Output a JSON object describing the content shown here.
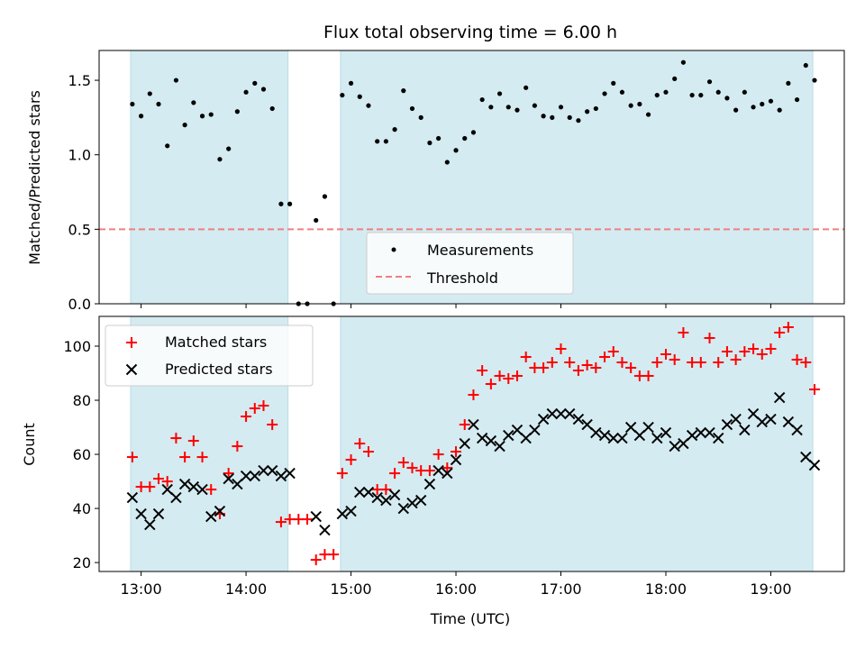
{
  "chart_data": {
    "title": "Flux total observing time = 6.00 h",
    "xlabel": "Time (UTC)",
    "x_ticks": [
      "13:00",
      "14:00",
      "15:00",
      "16:00",
      "17:00",
      "18:00",
      "19:00"
    ],
    "x_tick_hours": [
      13,
      14,
      15,
      16,
      17,
      18,
      19
    ],
    "xlim_hours": [
      12.6,
      19.7
    ],
    "shaded_intervals_hours": [
      [
        12.9,
        14.4
      ],
      [
        14.9,
        19.4
      ]
    ],
    "shade_color": "#d4ebf1",
    "panels": [
      {
        "type": "scatter",
        "ylabel": "Matched/Predicted stars",
        "ylim": [
          0,
          1.7
        ],
        "y_ticks": [
          0.0,
          0.5,
          1.0,
          1.5
        ],
        "y_tick_labels": [
          "0.0",
          "0.5",
          "1.0",
          "1.5"
        ],
        "threshold": 0.5,
        "threshold_color": "#f08080",
        "legend_position": "lower-center",
        "legend": [
          {
            "name": "Measurements",
            "marker": "dot",
            "color": "#000000"
          },
          {
            "name": "Threshold",
            "marker": "dashed-line",
            "color": "#f08080"
          }
        ],
        "series": [
          {
            "name": "Measurements",
            "color": "#000000",
            "x": [
              "12:55",
              "13:00",
              "13:05",
              "13:10",
              "13:15",
              "13:20",
              "13:25",
              "13:30",
              "13:35",
              "13:40",
              "13:45",
              "13:50",
              "13:55",
              "14:00",
              "14:05",
              "14:10",
              "14:15",
              "14:20",
              "14:25",
              "14:30",
              "14:35",
              "14:40",
              "14:45",
              "14:50",
              "14:55",
              "15:00",
              "15:05",
              "15:10",
              "15:15",
              "15:20",
              "15:25",
              "15:30",
              "15:35",
              "15:40",
              "15:45",
              "15:50",
              "15:55",
              "16:00",
              "16:05",
              "16:10",
              "16:15",
              "16:20",
              "16:25",
              "16:30",
              "16:35",
              "16:40",
              "16:45",
              "16:50",
              "16:55",
              "17:00",
              "17:05",
              "17:10",
              "17:15",
              "17:20",
              "17:25",
              "17:30",
              "17:35",
              "17:40",
              "17:45",
              "17:50",
              "17:55",
              "18:00",
              "18:05",
              "18:10",
              "18:15",
              "18:20",
              "18:25",
              "18:30",
              "18:35",
              "18:40",
              "18:45",
              "18:50",
              "18:55",
              "19:00",
              "19:05",
              "19:10",
              "19:15",
              "19:20",
              "19:25"
            ],
            "y": [
              1.34,
              1.26,
              1.41,
              1.34,
              1.06,
              1.5,
              1.2,
              1.35,
              1.26,
              1.27,
              0.97,
              1.04,
              1.29,
              1.42,
              1.48,
              1.44,
              1.31,
              0.67,
              0.67,
              0.0,
              0.0,
              0.56,
              0.72,
              0.0,
              1.4,
              1.48,
              1.39,
              1.33,
              1.09,
              1.09,
              1.17,
              1.43,
              1.31,
              1.25,
              1.08,
              1.11,
              0.95,
              1.03,
              1.11,
              1.15,
              1.37,
              1.32,
              1.41,
              1.32,
              1.3,
              1.45,
              1.33,
              1.26,
              1.25,
              1.32,
              1.25,
              1.23,
              1.29,
              1.31,
              1.41,
              1.48,
              1.42,
              1.33,
              1.34,
              1.27,
              1.4,
              1.42,
              1.51,
              1.62,
              1.4,
              1.4,
              1.49,
              1.42,
              1.38,
              1.3,
              1.42,
              1.32,
              1.34,
              1.36,
              1.3,
              1.48,
              1.37,
              1.6,
              1.5
            ]
          }
        ]
      },
      {
        "type": "scatter",
        "ylabel": "Count",
        "ylim": [
          16.7,
          111
        ],
        "y_ticks": [
          20,
          40,
          60,
          80,
          100
        ],
        "y_tick_labels": [
          "20",
          "40",
          "60",
          "80",
          "100"
        ],
        "legend_position": "upper-left",
        "legend": [
          {
            "name": "Matched stars",
            "marker": "plus",
            "color": "#ff0000"
          },
          {
            "name": "Predicted stars",
            "marker": "x",
            "color": "#000000"
          }
        ],
        "series": [
          {
            "name": "Matched stars",
            "marker": "plus",
            "color": "#ff0000",
            "x": [
              "12:55",
              "13:00",
              "13:05",
              "13:10",
              "13:15",
              "13:20",
              "13:25",
              "13:30",
              "13:35",
              "13:40",
              "13:45",
              "13:50",
              "13:55",
              "14:00",
              "14:05",
              "14:10",
              "14:15",
              "14:20",
              "14:25",
              "14:30",
              "14:35",
              "14:40",
              "14:45",
              "14:50",
              "14:55",
              "15:00",
              "15:05",
              "15:10",
              "15:15",
              "15:20",
              "15:25",
              "15:30",
              "15:35",
              "15:40",
              "15:45",
              "15:50",
              "15:55",
              "16:00",
              "16:05",
              "16:10",
              "16:15",
              "16:20",
              "16:25",
              "16:30",
              "16:35",
              "16:40",
              "16:45",
              "16:50",
              "16:55",
              "17:00",
              "17:05",
              "17:10",
              "17:15",
              "17:20",
              "17:25",
              "17:30",
              "17:35",
              "17:40",
              "17:45",
              "17:50",
              "17:55",
              "18:00",
              "18:05",
              "18:10",
              "18:15",
              "18:20",
              "18:25",
              "18:30",
              "18:35",
              "18:40",
              "18:45",
              "18:50",
              "18:55",
              "19:00",
              "19:05",
              "19:10",
              "19:15",
              "19:20",
              "19:25"
            ],
            "y": [
              59,
              48,
              48,
              51,
              50,
              66,
              59,
              65,
              59,
              47,
              38,
              53,
              63,
              74,
              77,
              78,
              71,
              35,
              36,
              36,
              36,
              21,
              23,
              23,
              53,
              58,
              64,
              61,
              47,
              47,
              53,
              57,
              55,
              54,
              54,
              60,
              55,
              61,
              71,
              82,
              91,
              86,
              89,
              88,
              89,
              96,
              92,
              92,
              94,
              99,
              94,
              91,
              93,
              92,
              96,
              98,
              94,
              92,
              89,
              89,
              94,
              97,
              95,
              105,
              94,
              94,
              103,
              94,
              98,
              95,
              98,
              99,
              97,
              99,
              105,
              107,
              95,
              94,
              84
            ]
          },
          {
            "name": "Predicted stars",
            "marker": "x",
            "color": "#000000",
            "x": [
              "12:55",
              "13:00",
              "13:05",
              "13:10",
              "13:15",
              "13:20",
              "13:25",
              "13:30",
              "13:35",
              "13:40",
              "13:45",
              "13:50",
              "13:55",
              "14:00",
              "14:05",
              "14:10",
              "14:15",
              "14:20",
              "14:25",
              "14:40",
              "14:45",
              "14:55",
              "15:00",
              "15:05",
              "15:10",
              "15:15",
              "15:20",
              "15:25",
              "15:30",
              "15:35",
              "15:40",
              "15:45",
              "15:50",
              "15:55",
              "16:00",
              "16:05",
              "16:10",
              "16:15",
              "16:20",
              "16:25",
              "16:30",
              "16:35",
              "16:40",
              "16:45",
              "16:50",
              "16:55",
              "17:00",
              "17:05",
              "17:10",
              "17:15",
              "17:20",
              "17:25",
              "17:30",
              "17:35",
              "17:40",
              "17:45",
              "17:50",
              "17:55",
              "18:00",
              "18:05",
              "18:10",
              "18:15",
              "18:20",
              "18:25",
              "18:30",
              "18:35",
              "18:40",
              "18:45",
              "18:50",
              "18:55",
              "19:00",
              "19:05",
              "19:10",
              "19:15",
              "19:20",
              "19:25"
            ],
            "y": [
              44,
              38,
              34,
              38,
              47,
              44,
              49,
              48,
              47,
              37,
              39,
              51,
              49,
              52,
              52,
              54,
              54,
              52,
              53,
              37,
              32,
              38,
              39,
              46,
              46,
              44,
              43,
              45,
              40,
              42,
              43,
              49,
              54,
              53,
              58,
              64,
              71,
              66,
              65,
              63,
              67,
              69,
              66,
              69,
              73,
              75,
              75,
              75,
              73,
              71,
              68,
              67,
              66,
              66,
              70,
              67,
              70,
              66,
              68,
              63,
              64,
              67,
              68,
              68,
              66,
              71,
              73,
              69,
              75,
              72,
              73,
              81,
              72,
              69,
              59,
              56
            ]
          }
        ]
      }
    ]
  }
}
